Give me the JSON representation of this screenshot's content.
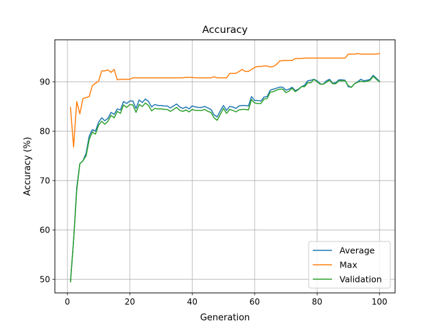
{
  "chart_data": {
    "type": "line",
    "title": "Accuracy",
    "xlabel": "Generation",
    "ylabel": "Accuracy (%)",
    "xlim": [
      -4.0,
      105.0
    ],
    "ylim": [
      47.25,
      98.5
    ],
    "x_ticks": [
      0,
      20,
      40,
      60,
      80,
      100
    ],
    "y_ticks": [
      50,
      60,
      70,
      80,
      90
    ],
    "grid": true,
    "legend_position": "lower-right",
    "x": [
      1,
      2,
      3,
      4,
      5,
      6,
      7,
      8,
      9,
      10,
      11,
      12,
      13,
      14,
      15,
      16,
      17,
      18,
      19,
      20,
      21,
      22,
      23,
      24,
      25,
      26,
      27,
      28,
      29,
      30,
      31,
      32,
      33,
      34,
      35,
      36,
      37,
      38,
      39,
      40,
      41,
      42,
      43,
      44,
      45,
      46,
      47,
      48,
      49,
      50,
      51,
      52,
      53,
      54,
      55,
      56,
      57,
      58,
      59,
      60,
      61,
      62,
      63,
      64,
      65,
      66,
      67,
      68,
      69,
      70,
      71,
      72,
      73,
      74,
      75,
      76,
      77,
      78,
      79,
      80,
      81,
      82,
      83,
      84,
      85,
      86,
      87,
      88,
      89,
      90,
      91,
      92,
      93,
      94,
      95,
      96,
      97,
      98,
      99,
      100
    ],
    "series": [
      {
        "name": "Average",
        "color": "#1f77b4",
        "values": [
          49.5,
          57.9,
          68.5,
          73.4,
          74.0,
          75.5,
          79.0,
          80.3,
          80.0,
          81.8,
          82.7,
          82.1,
          82.6,
          83.8,
          83.4,
          84.5,
          84.3,
          86.0,
          85.6,
          86.1,
          86.1,
          84.6,
          86.3,
          85.8,
          86.5,
          86.0,
          84.9,
          85.4,
          85.2,
          85.2,
          85.1,
          85.1,
          84.7,
          85.1,
          85.5,
          84.9,
          84.6,
          84.9,
          84.5,
          85.1,
          84.9,
          84.8,
          84.8,
          85.0,
          84.7,
          84.4,
          83.3,
          82.9,
          84.1,
          85.2,
          84.2,
          85.0,
          84.9,
          84.6,
          85.1,
          85.2,
          85.2,
          85.1,
          87.0,
          86.2,
          86.2,
          86.1,
          86.9,
          87.0,
          88.3,
          88.5,
          88.7,
          88.9,
          88.9,
          88.3,
          88.5,
          88.9,
          88.2,
          88.5,
          89.0,
          89.3,
          90.2,
          90.3,
          90.5,
          90.2,
          89.6,
          89.5,
          90.2,
          90.5,
          89.7,
          89.8,
          90.4,
          90.4,
          90.3,
          89.0,
          88.9,
          89.6,
          90.0,
          90.5,
          90.2,
          90.3,
          90.5,
          91.3,
          90.7,
          90.1
        ]
      },
      {
        "name": "Max",
        "color": "#ff7f0e",
        "values": [
          84.8,
          76.8,
          86.0,
          83.5,
          86.6,
          86.8,
          87.0,
          89.2,
          89.7,
          90.1,
          92.2,
          92.2,
          92.4,
          91.9,
          92.5,
          90.4,
          90.5,
          90.5,
          90.5,
          90.5,
          90.8,
          90.8,
          90.8,
          90.8,
          90.8,
          90.8,
          90.8,
          90.8,
          90.8,
          90.8,
          90.8,
          90.8,
          90.8,
          90.8,
          90.8,
          90.8,
          90.8,
          90.9,
          90.9,
          90.9,
          90.8,
          90.8,
          90.8,
          90.8,
          90.8,
          90.8,
          91.0,
          90.8,
          90.8,
          90.8,
          90.8,
          91.7,
          91.7,
          91.7,
          92.1,
          92.5,
          92.1,
          92.1,
          92.5,
          92.9,
          93.1,
          93.1,
          93.2,
          93.2,
          93.0,
          93.1,
          93.5,
          94.2,
          94.3,
          94.3,
          94.3,
          94.3,
          94.7,
          94.7,
          94.7,
          94.8,
          94.8,
          94.8,
          94.8,
          94.8,
          94.8,
          94.8,
          94.8,
          94.8,
          94.8,
          94.8,
          94.8,
          94.8,
          94.8,
          95.6,
          95.6,
          95.6,
          95.7,
          95.6,
          95.6,
          95.6,
          95.6,
          95.6,
          95.6,
          95.7
        ]
      },
      {
        "name": "Validation",
        "color": "#2ca02c",
        "values": [
          49.5,
          57.9,
          68.0,
          73.4,
          74.0,
          75.0,
          78.3,
          79.8,
          79.4,
          81.2,
          82.0,
          81.4,
          82.0,
          83.2,
          82.7,
          84.0,
          83.6,
          85.3,
          84.8,
          85.4,
          85.3,
          83.8,
          85.4,
          85.0,
          85.7,
          85.2,
          84.1,
          84.6,
          84.5,
          84.5,
          84.4,
          84.4,
          84.0,
          84.4,
          84.8,
          84.2,
          84.0,
          84.3,
          83.9,
          84.4,
          84.2,
          84.2,
          84.2,
          84.4,
          84.0,
          83.8,
          82.7,
          82.2,
          83.4,
          84.6,
          83.6,
          84.4,
          84.2,
          83.9,
          84.3,
          84.4,
          84.4,
          84.3,
          86.4,
          85.7,
          85.6,
          85.6,
          86.5,
          86.6,
          87.9,
          88.0,
          88.3,
          88.5,
          88.5,
          87.8,
          88.1,
          88.7,
          88.0,
          88.4,
          89.0,
          89.0,
          89.8,
          89.8,
          90.5,
          90.0,
          89.5,
          89.5,
          89.9,
          90.3,
          89.6,
          89.6,
          90.2,
          90.2,
          90.2,
          89.2,
          88.9,
          89.6,
          89.9,
          90.1,
          90.0,
          90.1,
          90.3,
          91.1,
          90.5,
          90.0
        ]
      }
    ]
  }
}
